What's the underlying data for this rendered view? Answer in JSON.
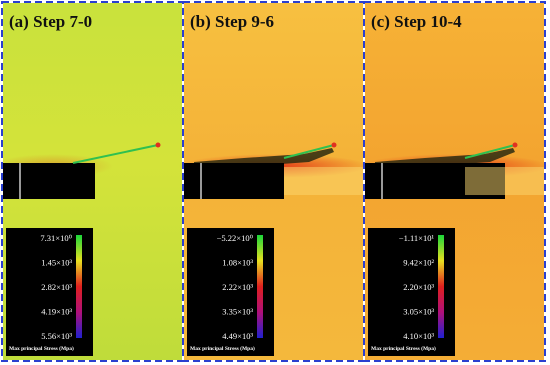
{
  "panels": [
    {
      "title": "(a) Step 7-0",
      "ticks": [
        "7.31×10⁰",
        "1.45×10³",
        "2.82×10³",
        "4.19×10³",
        "5.56×10³"
      ],
      "legend_title": "Max principal Stress (Mpa)"
    },
    {
      "title": "(b) Step 9-6",
      "ticks": [
        "−5.22×10⁰",
        "1.08×10³",
        "2.22×10³",
        "3.35×10³",
        "4.49×10³"
      ],
      "legend_title": "Max principal Stress (Mpa)"
    },
    {
      "title": "(c) Step 10-4",
      "ticks": [
        "−1.11×10¹",
        "9.42×10²",
        "2.20×10³",
        "3.05×10³",
        "4.10×10³"
      ],
      "legend_title": "Max principal Stress (Mpa)"
    }
  ]
}
